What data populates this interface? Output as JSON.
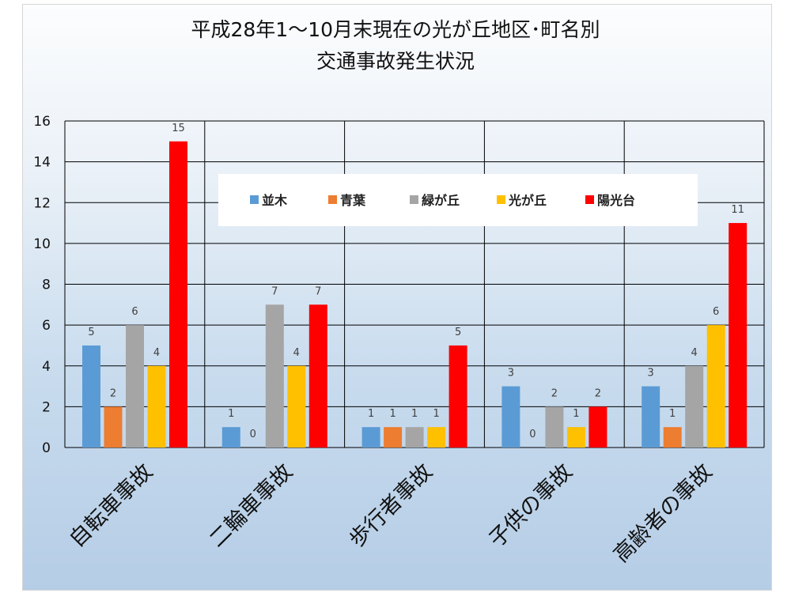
{
  "chart_data": {
    "type": "bar",
    "title_lines": [
      "平成28年1～10月末現在の光が丘地区･町名別",
      "交通事故発生状況"
    ],
    "categories": [
      "自転車事故",
      "二輪車事故",
      "歩行者事故",
      "子供の事故",
      "高齢者の事故"
    ],
    "series": [
      {
        "name": "並木",
        "color": "#5b9bd5",
        "values": [
          5,
          1,
          1,
          3,
          3
        ]
      },
      {
        "name": "青葉",
        "color": "#ed7d31",
        "values": [
          2,
          0,
          1,
          0,
          1
        ]
      },
      {
        "name": "緑が丘",
        "color": "#a5a5a5",
        "values": [
          6,
          7,
          1,
          2,
          4
        ]
      },
      {
        "name": "光が丘",
        "color": "#ffc000",
        "values": [
          4,
          4,
          1,
          1,
          6
        ]
      },
      {
        "name": "陽光台",
        "color": "#ff0000",
        "values": [
          15,
          7,
          5,
          2,
          11
        ]
      }
    ],
    "y_ticks": [
      "0",
      "2",
      "4",
      "6",
      "8",
      "10",
      "12",
      "14",
      "16"
    ],
    "ylim": [
      0,
      16
    ],
    "grid": true,
    "legend_position": "top-center",
    "data_labels": true
  }
}
